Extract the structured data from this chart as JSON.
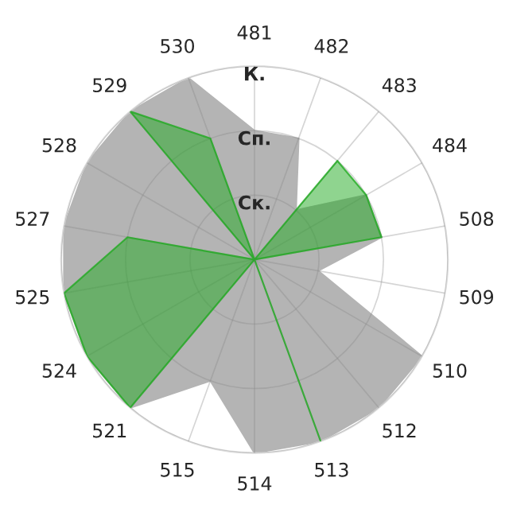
{
  "chart_data": {
    "type": "radar",
    "categories": [
      "481",
      "482",
      "483",
      "484",
      "508",
      "509",
      "510",
      "512",
      "513",
      "514",
      "515",
      "521",
      "524",
      "525",
      "527",
      "528",
      "529",
      "530"
    ],
    "series": [
      {
        "color": "#b4b4b4",
        "values": [
          2,
          2,
          1,
          2,
          2,
          1,
          3,
          3,
          3,
          3,
          2,
          3,
          3,
          3,
          3,
          3,
          3,
          3
        ]
      },
      {
        "color": "#20aa20",
        "values": [
          0,
          0,
          2,
          2,
          2,
          0,
          0,
          0,
          3,
          0,
          0,
          3,
          3,
          3,
          2,
          0,
          3,
          2
        ]
      }
    ],
    "ylim": [
      0,
      3
    ],
    "yticks": [
      {
        "value": 1,
        "label": "Ск."
      },
      {
        "value": 2,
        "label": "Сп."
      },
      {
        "value": 3,
        "label": "К."
      }
    ],
    "grid": true
  }
}
